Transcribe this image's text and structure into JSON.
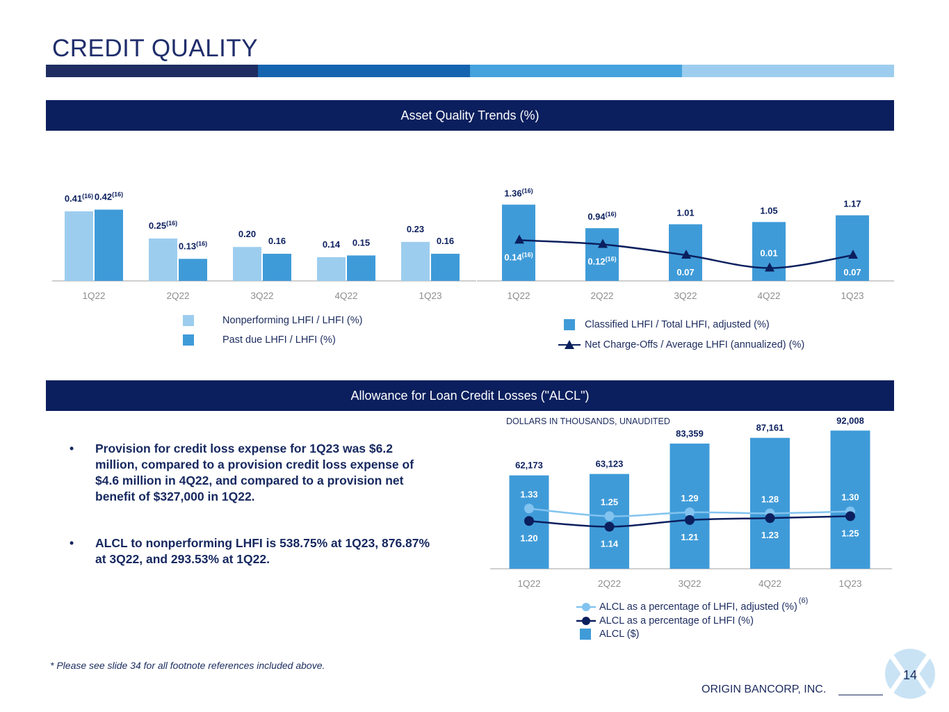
{
  "slide": {
    "title": "CREDIT QUALITY",
    "section1_title": "Asset Quality Trends (%)",
    "section2_title": "Allowance for Loan Credit Losses (\"ALCL\")",
    "units_note": "DOLLARS IN THOUSANDS, UNAUDITED",
    "bullets": [
      "Provision for credit loss expense for 1Q23 was $6.2 million, compared to a provision credit loss expense of $4.6 million in 4Q22, and compared to a provision net benefit of $327,000 in 1Q22.",
      "ALCL to nonperforming LHFI is 538.75% at 1Q23, 876.87% at 3Q22, and 293.53% at 1Q22."
    ],
    "bullet_symbol": "•",
    "footnote": "* Please see slide 34 for all footnote references included above.",
    "company": "ORIGIN BANCORP, INC.",
    "page_number": "14",
    "colors": {
      "navy": "#0b1f5e",
      "mid_blue": "#3f9bd8",
      "light_blue": "#9dcdee",
      "dark_line": "#0b1f5e",
      "light_line": "#82c3ef",
      "stripe": [
        "#1f2d62",
        "#1464b0",
        "#45a2dc",
        "#9dcdee"
      ]
    }
  },
  "chart_data": [
    {
      "type": "bar",
      "categories": [
        "1Q22",
        "2Q22",
        "3Q22",
        "4Q22",
        "1Q23"
      ],
      "series": [
        {
          "name": "Nonperforming LHFI / LHFI (%)",
          "values": [
            0.41,
            0.25,
            0.2,
            0.14,
            0.23
          ],
          "labels": [
            "0.41",
            "0.25",
            "0.20",
            "0.14",
            "0.23"
          ],
          "footnotes": [
            "(16)",
            "(16)",
            "",
            "",
            ""
          ]
        },
        {
          "name": "Past due LHFI / LHFI (%)",
          "values": [
            0.42,
            0.13,
            0.16,
            0.15,
            0.16
          ],
          "labels": [
            "0.42",
            "0.13",
            "0.16",
            "0.15",
            "0.16"
          ],
          "footnotes": [
            "(16)",
            "(16)",
            "",
            "",
            ""
          ]
        }
      ],
      "ylim": [
        0,
        0.5
      ]
    },
    {
      "type": "bar",
      "categories": [
        "1Q22",
        "2Q22",
        "3Q22",
        "4Q22",
        "1Q23"
      ],
      "series": [
        {
          "name": "Classified LHFI / Total LHFI, adjusted (%)",
          "kind": "bar",
          "values": [
            1.36,
            0.94,
            1.01,
            1.05,
            1.17
          ],
          "labels": [
            "1.36",
            "0.94",
            "1.01",
            "1.05",
            "1.17"
          ],
          "footnotes": [
            "(16)",
            "(16)",
            "",
            "",
            ""
          ]
        },
        {
          "name": "Net Charge-Offs / Average LHFI (annualized) (%)",
          "kind": "line",
          "marker": "triangle",
          "values": [
            0.14,
            0.12,
            0.07,
            0.01,
            0.07
          ],
          "labels": [
            "0.14",
            "0.12",
            "0.07",
            "0.01",
            "0.07"
          ],
          "footnotes": [
            "(16)",
            "(16)",
            "",
            "",
            ""
          ]
        }
      ],
      "ylim": [
        0,
        1.5
      ],
      "line_ylim": [
        -0.05,
        0.3
      ]
    },
    {
      "type": "bar",
      "categories": [
        "1Q22",
        "2Q22",
        "3Q22",
        "4Q22",
        "1Q23"
      ],
      "series": [
        {
          "name": "ALCL ($)",
          "kind": "bar",
          "values": [
            62173,
            63123,
            83359,
            87161,
            92008
          ],
          "labels": [
            "62,173",
            "63,123",
            "83,359",
            "87,161",
            "92,008"
          ]
        },
        {
          "name": "ALCL as a percentage of LHFI, adjusted (%)",
          "kind": "line",
          "values": [
            1.33,
            1.25,
            1.29,
            1.28,
            1.3
          ],
          "labels": [
            "1.33",
            "1.25",
            "1.29",
            "1.28",
            "1.30"
          ],
          "footnote": "(6)"
        },
        {
          "name": "ALCL as a percentage of LHFI (%)",
          "kind": "line",
          "values": [
            1.2,
            1.14,
            1.21,
            1.23,
            1.25
          ],
          "labels": [
            "1.20",
            "1.14",
            "1.21",
            "1.23",
            "1.25"
          ]
        }
      ],
      "ylim": [
        0,
        100000
      ],
      "line_ylim": [
        0.7,
        1.9
      ]
    }
  ]
}
